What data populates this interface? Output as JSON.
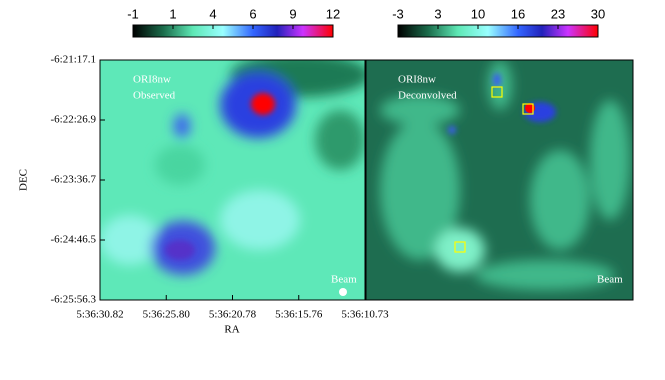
{
  "panels": [
    {
      "label": "ORI8nw",
      "sublabel": "Observed",
      "beam": "Beam",
      "colorbar_ticks": [
        -1,
        1,
        4,
        6,
        9,
        12
      ]
    },
    {
      "label": "ORI8nw",
      "sublabel": "Deconvolved",
      "beam": "Beam",
      "colorbar_ticks": [
        -3,
        3,
        10,
        16,
        23,
        30
      ]
    }
  ],
  "y_axis": {
    "label": "DEC",
    "ticks": [
      "-6:21:17.1",
      "-6:22:26.9",
      "-6:23:36.7",
      "-6:24:46.5",
      "-6:25:56.3"
    ]
  },
  "x_axis": {
    "label": "RA",
    "ticks": [
      "5:36:30.82",
      "5:36:25.80",
      "5:36:20.78",
      "5:36:15.76",
      "5:36:10.73"
    ]
  }
}
